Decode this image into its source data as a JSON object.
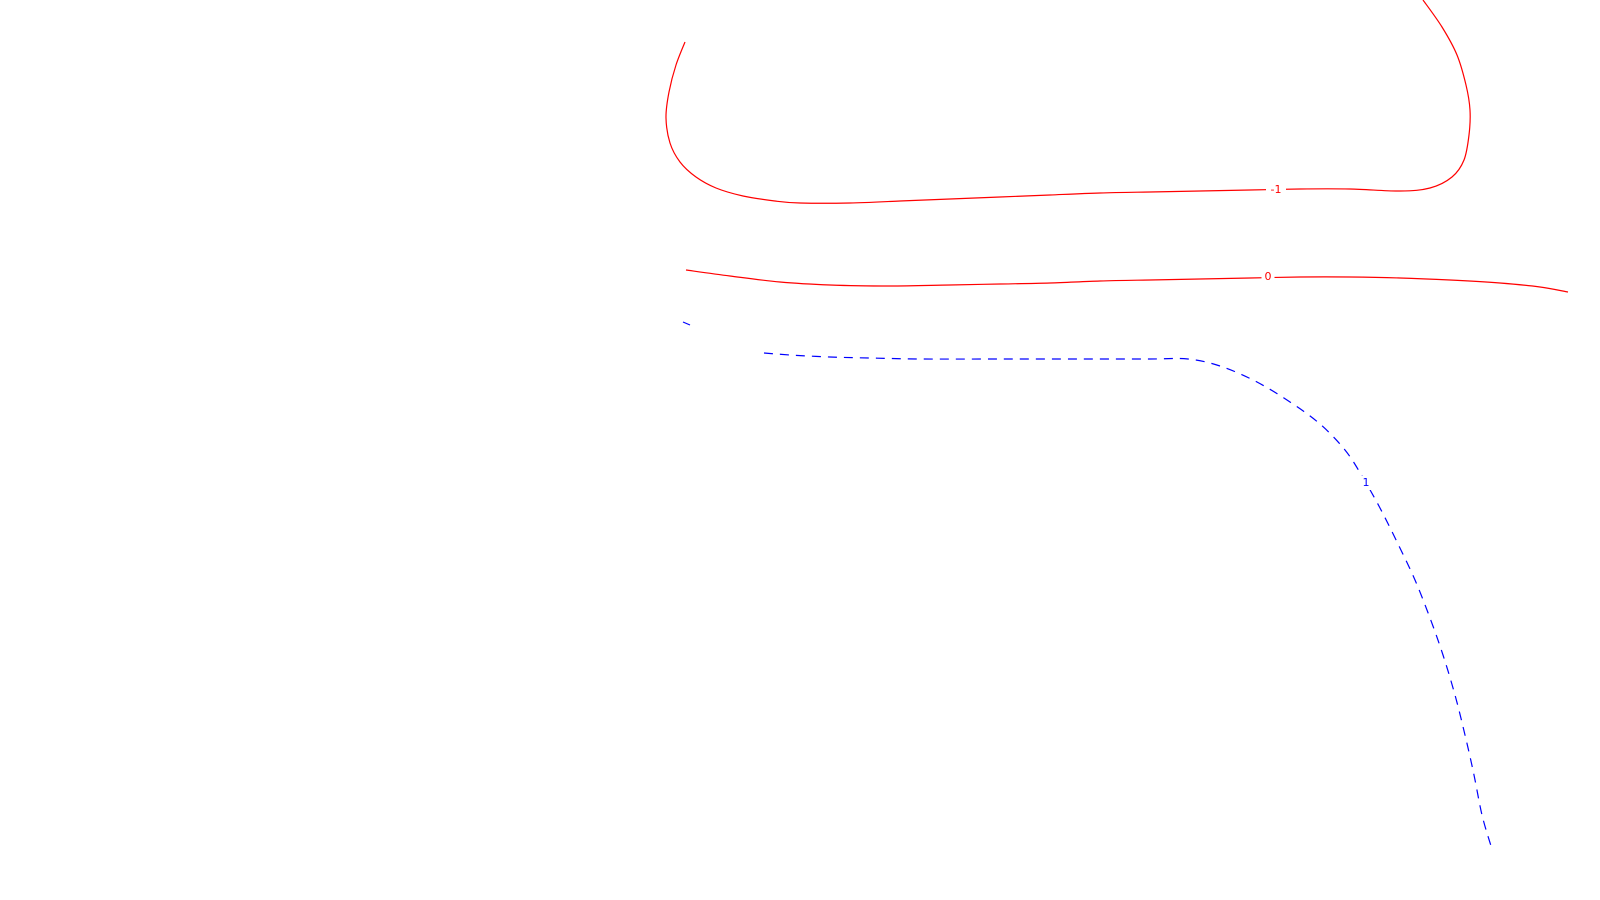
{
  "chart_data": {
    "type": "line",
    "title": "",
    "xlabel": "",
    "ylabel": "",
    "grid": false,
    "series": [
      {
        "level_label": "-1",
        "color": "#ff0000",
        "dashed": false,
        "points": [
          [
            685,
            42
          ],
          [
            676,
            65
          ],
          [
            669,
            92
          ],
          [
            666,
            118
          ],
          [
            670,
            143
          ],
          [
            680,
            162
          ],
          [
            696,
            177
          ],
          [
            716,
            188
          ],
          [
            743,
            196
          ],
          [
            775,
            201
          ],
          [
            800,
            203
          ],
          [
            850,
            203
          ],
          [
            900,
            201
          ],
          [
            950,
            199
          ],
          [
            1000,
            197
          ],
          [
            1050,
            195
          ],
          [
            1100,
            193
          ],
          [
            1150,
            192
          ],
          [
            1200,
            191
          ],
          [
            1250,
            190
          ],
          [
            1300,
            189
          ],
          [
            1350,
            189
          ],
          [
            1400,
            191
          ],
          [
            1430,
            188
          ],
          [
            1452,
            177
          ],
          [
            1464,
            160
          ],
          [
            1469,
            135
          ],
          [
            1470,
            110
          ],
          [
            1466,
            85
          ],
          [
            1457,
            55
          ],
          [
            1442,
            27
          ],
          [
            1423,
            0
          ]
        ],
        "label_point": [
          1276,
          190
        ]
      },
      {
        "level_label": "0",
        "color": "#ff0000",
        "dashed": false,
        "points": [
          [
            686,
            270
          ],
          [
            730,
            276
          ],
          [
            780,
            282
          ],
          [
            830,
            285
          ],
          [
            890,
            286
          ],
          [
            950,
            285
          ],
          [
            1000,
            284
          ],
          [
            1050,
            283
          ],
          [
            1100,
            281
          ],
          [
            1150,
            280
          ],
          [
            1200,
            279
          ],
          [
            1250,
            278
          ],
          [
            1300,
            277
          ],
          [
            1350,
            277
          ],
          [
            1400,
            278
          ],
          [
            1450,
            280
          ],
          [
            1500,
            283
          ],
          [
            1540,
            287
          ],
          [
            1568,
            292
          ]
        ],
        "label_point": [
          1268,
          277
        ]
      },
      {
        "level_label": "1",
        "color": "#0000ff",
        "dashed": true,
        "points": [
          [
            764,
            353
          ],
          [
            790,
            355
          ],
          [
            830,
            357
          ],
          [
            870,
            358
          ],
          [
            920,
            359
          ],
          [
            1000,
            359
          ],
          [
            1080,
            359
          ],
          [
            1150,
            359
          ],
          [
            1188,
            359
          ],
          [
            1220,
            366
          ],
          [
            1255,
            381
          ],
          [
            1290,
            402
          ],
          [
            1320,
            424
          ],
          [
            1345,
            450
          ],
          [
            1362,
            476
          ],
          [
            1380,
            508
          ],
          [
            1398,
            544
          ],
          [
            1415,
            580
          ],
          [
            1430,
            618
          ],
          [
            1443,
            655
          ],
          [
            1455,
            695
          ],
          [
            1465,
            735
          ],
          [
            1474,
            775
          ],
          [
            1482,
            815
          ],
          [
            1491,
            846
          ]
        ],
        "segment_points": [
          [
            683,
            322
          ],
          [
            690,
            325
          ]
        ],
        "label_point": [
          1366,
          483
        ]
      }
    ]
  }
}
